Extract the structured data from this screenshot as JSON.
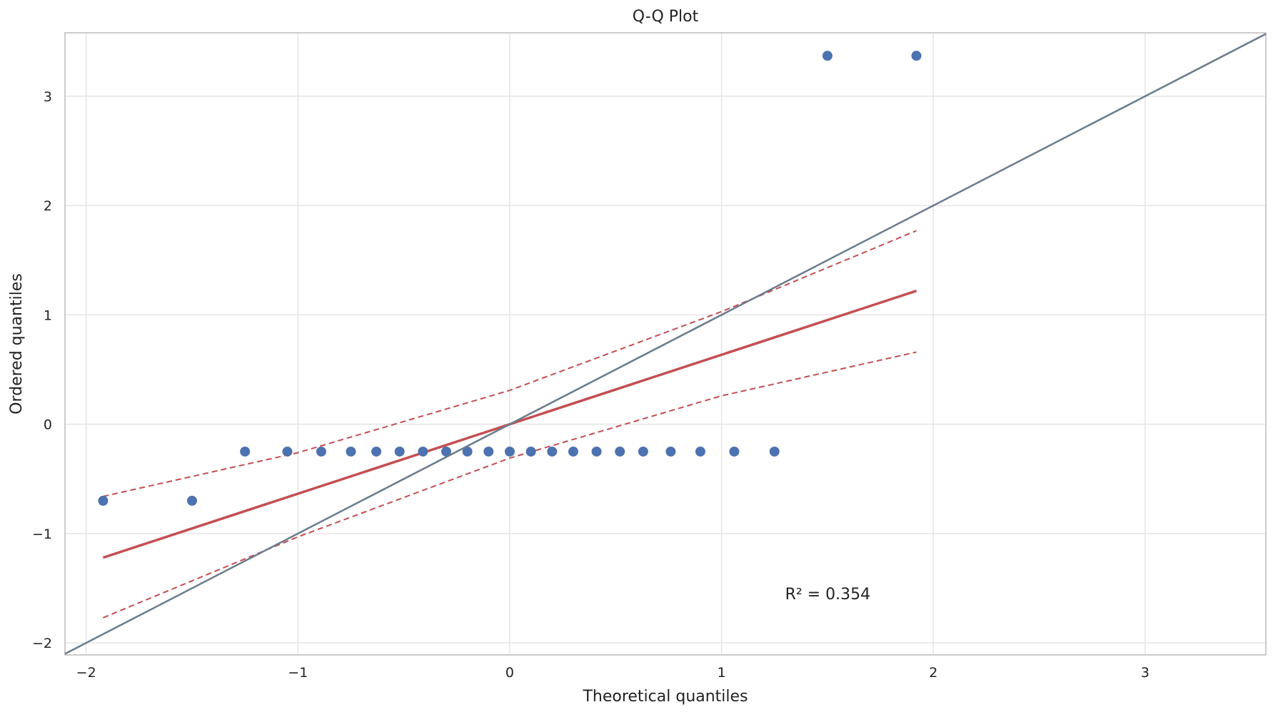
{
  "chart_data": {
    "type": "scatter",
    "title": "Q-Q Plot",
    "xlabel": "Theoretical quantiles",
    "ylabel": "Ordered quantiles",
    "xlim": [
      -2.1,
      3.57
    ],
    "ylim": [
      -2.11,
      3.58
    ],
    "xticks": [
      -2,
      -1,
      0,
      1,
      2,
      3
    ],
    "yticks": [
      -2,
      -1,
      0,
      1,
      2,
      3
    ],
    "xtick_labels": [
      "−2",
      "−1",
      "0",
      "1",
      "2",
      "3"
    ],
    "ytick_labels": [
      "−2",
      "−1",
      "0",
      "1",
      "2",
      "3"
    ],
    "grid": true,
    "points": {
      "x": [
        -1.92,
        -1.5,
        -1.25,
        -1.05,
        -0.89,
        -0.75,
        -0.63,
        -0.52,
        -0.41,
        -0.3,
        -0.2,
        -0.1,
        0.0,
        0.1,
        0.2,
        0.3,
        0.41,
        0.52,
        0.63,
        0.76,
        0.9,
        1.06,
        1.25,
        1.5,
        1.92
      ],
      "y": [
        -0.7,
        -0.7,
        -0.25,
        -0.25,
        -0.25,
        -0.25,
        -0.25,
        -0.25,
        -0.25,
        -0.25,
        -0.25,
        -0.25,
        -0.25,
        -0.25,
        -0.25,
        -0.25,
        -0.25,
        -0.25,
        -0.25,
        -0.25,
        -0.25,
        -0.25,
        -0.25,
        3.37,
        3.37
      ],
      "color": "#4c72b0"
    },
    "fit_line": {
      "x": [
        -1.92,
        1.92
      ],
      "y": [
        -1.22,
        1.22
      ],
      "color": "#c44e52"
    },
    "confidence_band": {
      "x": [
        -1.92,
        -1.0,
        0.0,
        1.0,
        1.92
      ],
      "upper": [
        -0.66,
        -0.26,
        0.31,
        1.03,
        1.77
      ],
      "lower": [
        -1.77,
        -1.03,
        -0.31,
        0.26,
        0.66
      ],
      "color": "#c44e52"
    },
    "reference_line": {
      "x": [
        -2.1,
        3.57
      ],
      "y": [
        -2.1,
        3.57
      ],
      "color": "#6a7b8c"
    },
    "annotation": {
      "text": "R² = 0.354",
      "x": 1.3,
      "y": -1.55
    }
  }
}
